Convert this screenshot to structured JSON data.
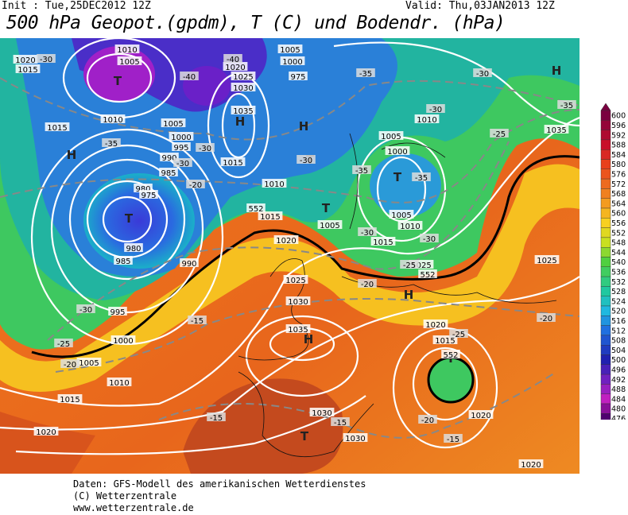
{
  "header": {
    "init": "Init : Tue,25DEC2012 12Z",
    "valid": "Valid: Thu,03JAN2013 12Z",
    "title": "500 hPa Geopot.(gpdm), T (C) und Bodendr. (hPa)"
  },
  "map": {
    "labels": [
      "1010",
      "1005",
      "T",
      "1020",
      "1015",
      "1015",
      "1010",
      "H",
      "1005",
      "1000",
      "995",
      "990",
      "985",
      "980",
      "975",
      "T",
      "980",
      "985",
      "990",
      "995",
      "1000",
      "1005",
      "1010",
      "1015",
      "1020",
      "1020",
      "1025",
      "1030",
      "1035",
      "H",
      "1015",
      "1010",
      "1015",
      "1020",
      "1025",
      "1030",
      "1035",
      "H",
      "1030",
      "1030",
      "T",
      "H",
      "T",
      "T",
      "1005",
      "1000",
      "975",
      "1010",
      "1005",
      "1000",
      "T",
      "1005",
      "1010",
      "1015",
      "1005",
      "1025",
      "H",
      "1020",
      "1015",
      "T",
      "1020",
      "1025",
      "1020",
      "1035",
      "H",
      "-30",
      "-40",
      "-40",
      "-35",
      "-30",
      "-35",
      "-30",
      "-35",
      "-30",
      "-30",
      "-20",
      "-35",
      "-35",
      "-30",
      "-30",
      "-30",
      "-25",
      "-25",
      "-20",
      "-15",
      "-20",
      "-25",
      "-20",
      "-25",
      "-20",
      "-15",
      "-15",
      "-15",
      "-30",
      "552",
      "552",
      "552"
    ]
  },
  "colorbar": {
    "labels": [
      600,
      596,
      592,
      588,
      584,
      580,
      576,
      572,
      568,
      564,
      560,
      556,
      552,
      548,
      544,
      540,
      536,
      532,
      528,
      524,
      520,
      516,
      512,
      508,
      504,
      500,
      496,
      492,
      488,
      484,
      480,
      476
    ]
  },
  "footer": {
    "lines": [
      "Daten: GFS-Modell des amerikanischen Wetterdienstes",
      "(C) Wetterzentrale",
      "www.wetterzentrale.de"
    ]
  }
}
